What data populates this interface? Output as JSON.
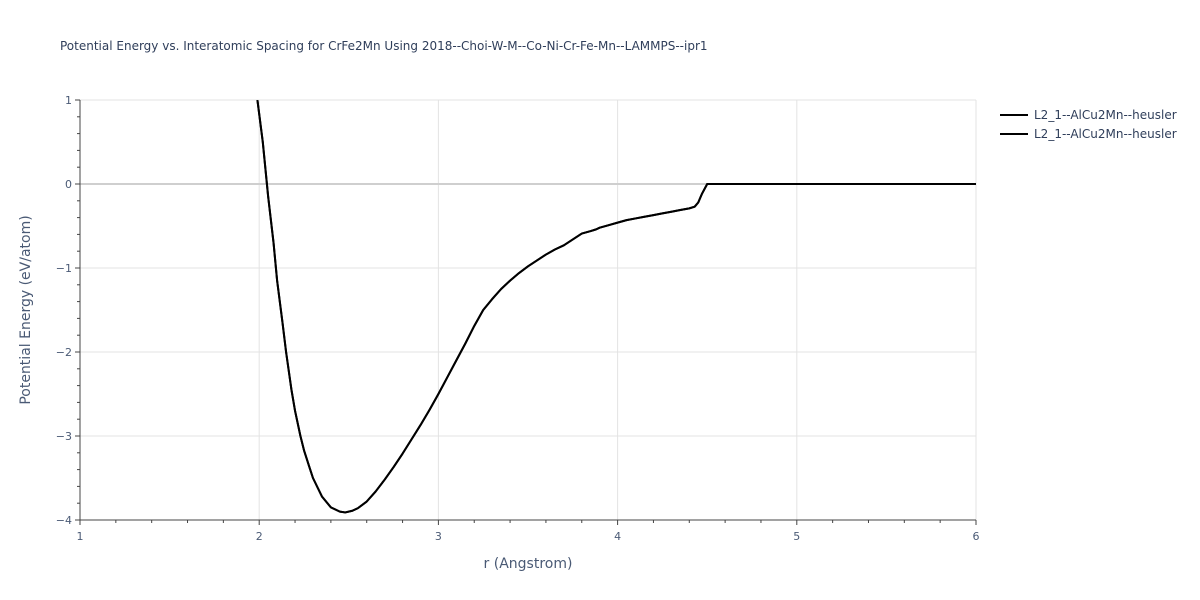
{
  "chart_data": {
    "type": "line",
    "title": "Potential Energy vs. Interatomic Spacing for CrFe2Mn Using 2018--Choi-W-M--Co-Ni-Cr-Fe-Mn--LAMMPS--ipr1",
    "xlabel": "r (Angstrom)",
    "ylabel": "Potential Energy (eV/atom)",
    "xlim": [
      1,
      6
    ],
    "ylim": [
      -4,
      1
    ],
    "x_ticks": [
      1,
      2,
      3,
      4,
      5,
      6
    ],
    "x_tick_labels": [
      "1",
      "2",
      "3",
      "4",
      "5",
      "6"
    ],
    "y_ticks": [
      1,
      0,
      -1,
      -2,
      -3,
      -4
    ],
    "y_tick_labels": [
      "1",
      "0",
      "−1",
      "−2",
      "−3",
      "−4"
    ],
    "grid": true,
    "legend_position": "top-right",
    "line_color": "#000000",
    "series": [
      {
        "name": "L2_1--AlCu2Mn--heusler",
        "x": [
          1.99,
          2.02,
          2.05,
          2.08,
          2.1,
          2.13,
          2.15,
          2.18,
          2.2,
          2.23,
          2.25,
          2.28,
          2.3,
          2.35,
          2.4,
          2.45,
          2.48,
          2.52,
          2.55,
          2.6,
          2.65,
          2.7,
          2.75,
          2.8,
          2.85,
          2.9,
          2.95,
          3.0,
          3.05,
          3.1,
          3.15,
          3.2,
          3.25,
          3.3,
          3.35,
          3.4,
          3.45,
          3.5,
          3.55,
          3.6,
          3.65,
          3.7,
          3.75,
          3.8,
          3.85,
          3.88,
          3.9,
          3.95,
          4.0,
          4.05,
          4.1,
          4.15,
          4.2,
          4.25,
          4.3,
          4.35,
          4.4,
          4.43,
          4.45,
          4.47,
          4.5,
          4.6,
          5.0,
          5.5,
          6.0
        ],
        "y": [
          1.0,
          0.5,
          -0.15,
          -0.7,
          -1.15,
          -1.65,
          -2.0,
          -2.45,
          -2.7,
          -3.0,
          -3.17,
          -3.37,
          -3.5,
          -3.72,
          -3.85,
          -3.9,
          -3.91,
          -3.89,
          -3.86,
          -3.78,
          -3.66,
          -3.52,
          -3.37,
          -3.21,
          -3.04,
          -2.87,
          -2.69,
          -2.5,
          -2.3,
          -2.1,
          -1.9,
          -1.69,
          -1.5,
          -1.37,
          -1.25,
          -1.15,
          -1.06,
          -0.98,
          -0.91,
          -0.84,
          -0.78,
          -0.73,
          -0.66,
          -0.59,
          -0.56,
          -0.54,
          -0.52,
          -0.49,
          -0.46,
          -0.43,
          -0.41,
          -0.39,
          -0.37,
          -0.35,
          -0.33,
          -0.31,
          -0.29,
          -0.27,
          -0.22,
          -0.12,
          0.0,
          0.0,
          0.0,
          0.0,
          0.0
        ]
      },
      {
        "name": "L2_1--AlCu2Mn--heusler",
        "x": [
          1.99,
          2.02,
          2.05,
          2.08,
          2.1,
          2.13,
          2.15,
          2.18,
          2.2,
          2.23,
          2.25,
          2.28,
          2.3,
          2.35,
          2.4,
          2.45,
          2.48,
          2.52,
          2.55,
          2.6,
          2.65,
          2.7,
          2.75,
          2.8,
          2.85,
          2.9,
          2.95,
          3.0,
          3.05,
          3.1,
          3.15,
          3.2,
          3.25,
          3.3,
          3.35,
          3.4,
          3.45,
          3.5,
          3.55,
          3.6,
          3.65,
          3.7,
          3.75,
          3.8,
          3.85,
          3.88,
          3.9,
          3.95,
          4.0,
          4.05,
          4.1,
          4.15,
          4.2,
          4.25,
          4.3,
          4.35,
          4.4,
          4.43,
          4.45,
          4.47,
          4.5,
          4.6,
          5.0,
          5.5,
          6.0
        ],
        "y": [
          1.0,
          0.5,
          -0.15,
          -0.7,
          -1.15,
          -1.65,
          -2.0,
          -2.45,
          -2.7,
          -3.0,
          -3.17,
          -3.37,
          -3.5,
          -3.72,
          -3.85,
          -3.9,
          -3.91,
          -3.89,
          -3.86,
          -3.78,
          -3.66,
          -3.52,
          -3.37,
          -3.21,
          -3.04,
          -2.87,
          -2.69,
          -2.5,
          -2.3,
          -2.1,
          -1.9,
          -1.69,
          -1.5,
          -1.37,
          -1.25,
          -1.15,
          -1.06,
          -0.98,
          -0.91,
          -0.84,
          -0.78,
          -0.73,
          -0.66,
          -0.59,
          -0.56,
          -0.54,
          -0.52,
          -0.49,
          -0.46,
          -0.43,
          -0.41,
          -0.39,
          -0.37,
          -0.35,
          -0.33,
          -0.31,
          -0.29,
          -0.27,
          -0.22,
          -0.12,
          0.0,
          0.0,
          0.0,
          0.0,
          0.0
        ]
      }
    ]
  }
}
